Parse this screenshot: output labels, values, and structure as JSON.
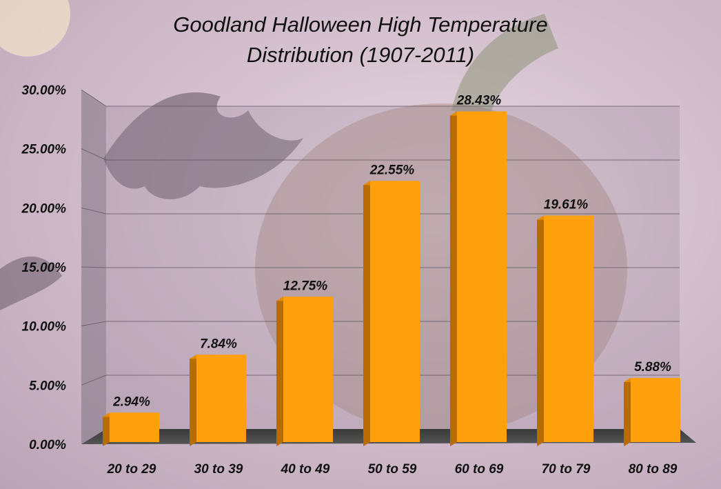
{
  "chart_data": {
    "type": "bar",
    "title_lines": [
      "Goodland Halloween High Temperature",
      "Distribution (1907-2011)"
    ],
    "categories": [
      "20 to 29",
      "30 to 39",
      "40 to 49",
      "50 to 59",
      "60 to 69",
      "70 to 79",
      "80 to 89"
    ],
    "values": [
      2.94,
      7.84,
      12.75,
      22.55,
      28.43,
      19.61,
      5.88
    ],
    "value_labels": [
      "2.94%",
      "7.84%",
      "12.75%",
      "22.55%",
      "28.43%",
      "19.61%",
      "5.88%"
    ],
    "y_ticks": [
      0,
      5,
      10,
      15,
      20,
      25,
      30
    ],
    "y_tick_labels": [
      "0.00%",
      "5.00%",
      "10.00%",
      "15.00%",
      "20.00%",
      "25.00%",
      "30.00%"
    ],
    "ylim": [
      0,
      30
    ],
    "grid": true,
    "legend": "none",
    "style": "3d-column",
    "bar_color": "#ffa00c",
    "bar_side_color": "#b86c00",
    "bar_top_color": "#e88a00"
  }
}
